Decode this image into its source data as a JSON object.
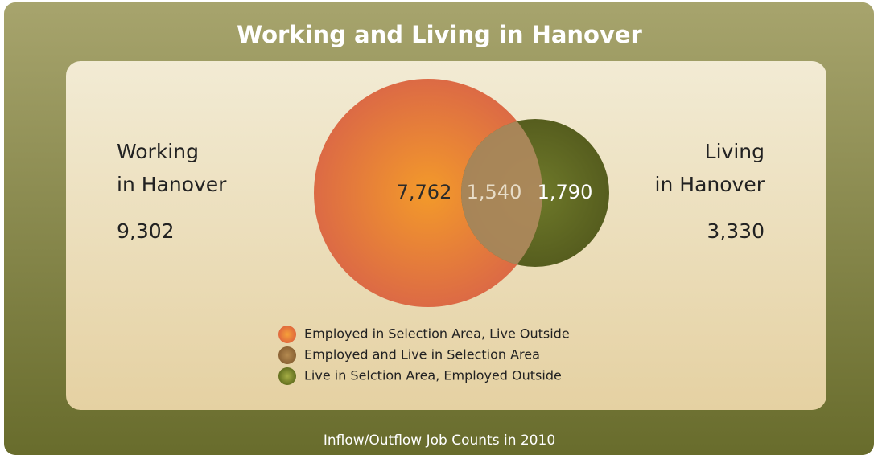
{
  "title": "Working and Living in Hanover",
  "left": {
    "lines": [
      "Working",
      "in Hanover"
    ],
    "count": "9,302"
  },
  "right": {
    "lines": [
      "Living",
      "in Hanover"
    ],
    "count": "3,330"
  },
  "venn": {
    "outside_work": "7,762",
    "overlap": "1,540",
    "outside_live": "1,790"
  },
  "legend": [
    "Employed in Selection Area, Live Outside",
    "Employed and Live in Selection Area",
    "Live in Selction Area, Employed Outside"
  ],
  "footer": "Inflow/Outflow Job Counts in 2010"
}
